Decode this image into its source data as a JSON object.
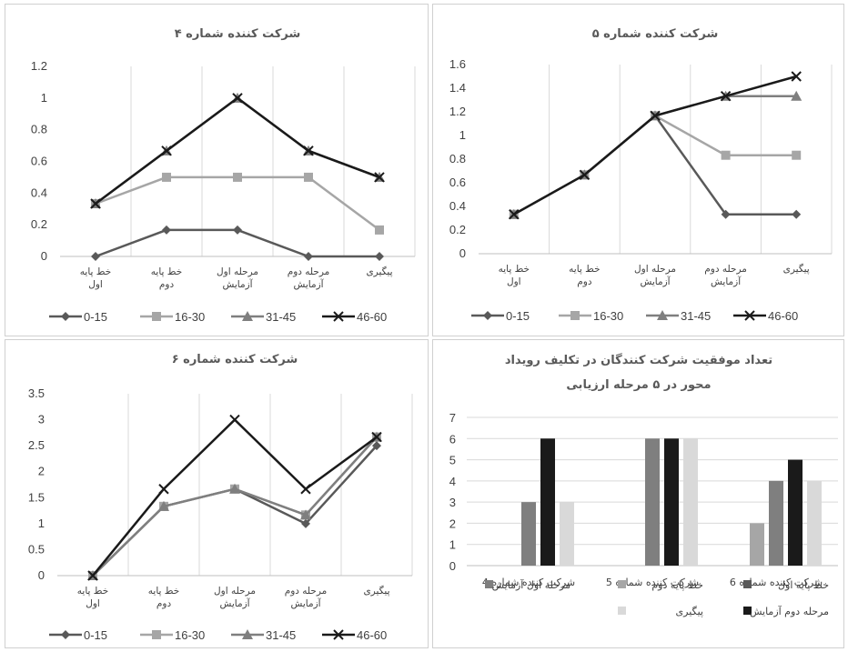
{
  "categories_line": [
    [
      "خط پایه",
      "اول"
    ],
    [
      "خط پایه",
      "دوم"
    ],
    [
      "مرحله اول",
      "آزمایش"
    ],
    [
      "مرحله دوم",
      "آزمایش"
    ],
    [
      "پیگیری"
    ]
  ],
  "colors": {
    "0-15": "#595959",
    "16-30": "#a6a6a6",
    "31-45": "#7f7f7f",
    "46-60": "#1a1a1a"
  },
  "chart_data": [
    {
      "type": "line",
      "title": "شرکت کننده شماره ۴",
      "ylim": [
        0,
        1.2
      ],
      "yticks": [
        "0",
        "0.2",
        "0.4",
        "0.6",
        "0.8",
        "1",
        "1.2"
      ],
      "series": [
        {
          "name": "0-15",
          "marker": "diamond",
          "values": [
            0,
            0.167,
            0.167,
            0,
            0
          ]
        },
        {
          "name": "16-30",
          "marker": "square",
          "values": [
            0.333,
            0.5,
            0.5,
            0.5,
            0.167
          ]
        },
        {
          "name": "31-45",
          "marker": "triangle",
          "values": [
            0.333,
            0.667,
            1,
            0.667,
            0.5
          ]
        },
        {
          "name": "46-60",
          "marker": "x",
          "values": [
            0.333,
            0.667,
            1,
            0.667,
            0.5
          ]
        }
      ]
    },
    {
      "type": "line",
      "title": "شرکت کننده شماره ۵",
      "ylim": [
        0,
        1.6
      ],
      "yticks": [
        "0",
        "0.2",
        "0.4",
        "0.6",
        "0.8",
        "1",
        "1.2",
        "1.4",
        "1.6"
      ],
      "series": [
        {
          "name": "0-15",
          "marker": "diamond",
          "values": [
            0.333,
            0.667,
            1.167,
            0.333,
            0.333
          ]
        },
        {
          "name": "16-30",
          "marker": "square",
          "values": [
            0.333,
            0.667,
            1.167,
            0.833,
            0.833
          ]
        },
        {
          "name": "31-45",
          "marker": "triangle",
          "values": [
            0.333,
            0.667,
            1.167,
            1.333,
            1.333
          ]
        },
        {
          "name": "46-60",
          "marker": "x",
          "values": [
            0.333,
            0.667,
            1.167,
            1.333,
            1.5
          ]
        }
      ]
    },
    {
      "type": "line",
      "title": "شرکت کننده شماره ۶",
      "ylim": [
        0,
        3.5
      ],
      "yticks": [
        "0",
        "0.5",
        "1",
        "1.5",
        "2",
        "2.5",
        "3",
        "3.5"
      ],
      "series": [
        {
          "name": "0-15",
          "marker": "diamond",
          "values": [
            0,
            1.333,
            1.667,
            1.0,
            2.5
          ]
        },
        {
          "name": "16-30",
          "marker": "square",
          "values": [
            0,
            1.333,
            1.667,
            1.167,
            2.667
          ]
        },
        {
          "name": "31-45",
          "marker": "triangle",
          "values": [
            0,
            1.333,
            1.667,
            1.167,
            2.667
          ]
        },
        {
          "name": "46-60",
          "marker": "x",
          "values": [
            0,
            1.667,
            3.0,
            1.667,
            2.667
          ]
        }
      ]
    },
    {
      "type": "bar",
      "title": [
        "تعداد موفقیت شرکت کنندگان در تکلیف رویداد",
        "محور در ۵ مرحله ارزیابی"
      ],
      "ylim": [
        0,
        7
      ],
      "yticks": [
        "0",
        "1",
        "2",
        "3",
        "4",
        "5",
        "6",
        "7"
      ],
      "categories": [
        "شرکت کننده شماره 4",
        "شرکت کننده شماره 5",
        "شرکت کننده شماره 6"
      ],
      "series": [
        {
          "name": "خط پایه اول",
          "color": "#595959",
          "values": [
            0,
            0,
            0
          ]
        },
        {
          "name": "خط پایه دوم",
          "color": "#a6a6a6",
          "values": [
            0,
            0,
            2
          ]
        },
        {
          "name": "مرحله اول آزمایش",
          "color": "#7f7f7f",
          "values": [
            3,
            6,
            4
          ]
        },
        {
          "name": "مرحله دوم آزمایش",
          "color": "#1a1a1a",
          "values": [
            6,
            6,
            5
          ]
        },
        {
          "name": "پیگیری",
          "color": "#d9d9d9",
          "values": [
            3,
            6,
            4
          ]
        }
      ]
    }
  ]
}
